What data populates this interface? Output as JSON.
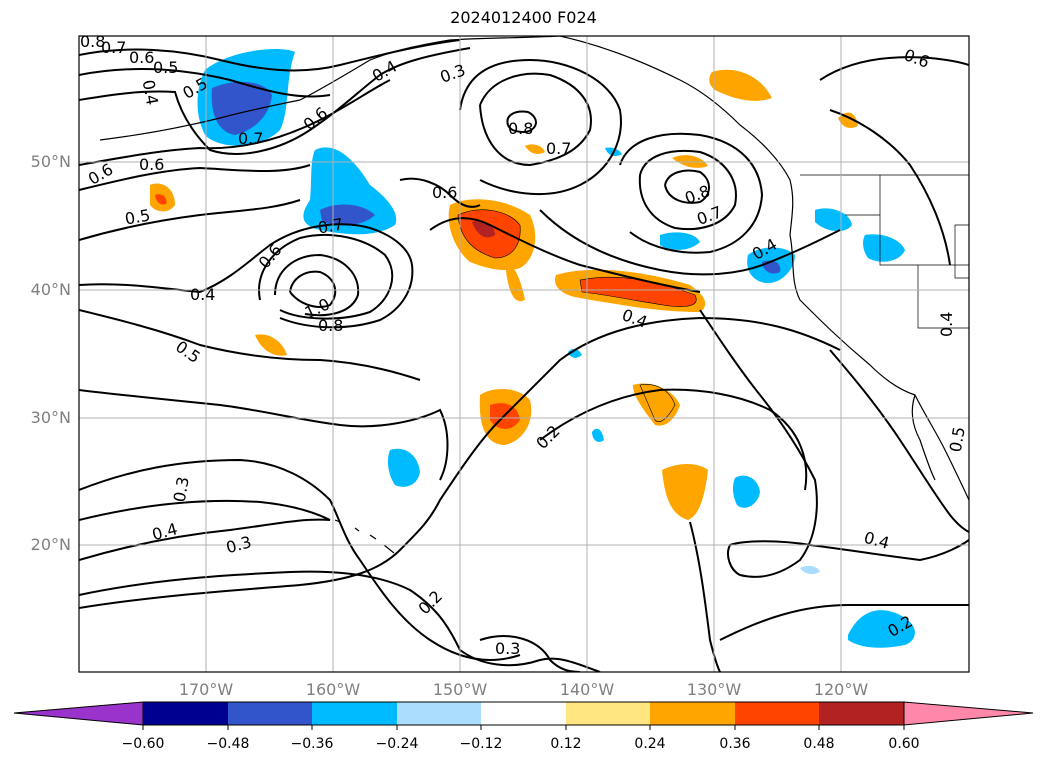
{
  "title": "2024012400 F024",
  "map": {
    "lat_labels": [
      "50°N",
      "40°N",
      "30°N",
      "20°N"
    ],
    "lon_labels": [
      "170°W",
      "160°W",
      "150°W",
      "140°W",
      "130°W",
      "120°W"
    ],
    "grid_color": "#b0b0b0",
    "contour_color": "#000000"
  },
  "contour_labels": [
    "0.8",
    "0.7",
    "0.6",
    "0.5",
    "0.4",
    "0.5",
    "0.6",
    "0.7",
    "0.6",
    "0.6",
    "0.4",
    "0.3",
    "0.8",
    "0.7",
    "0.6",
    "0.8",
    "0.7",
    "0.6",
    "0.5",
    "0.7",
    "0.6",
    "0.4",
    "1.0",
    "0.8",
    "0.4",
    "0.5",
    "0.4",
    "0.2",
    "0.3",
    "0.4",
    "0.3",
    "0.2",
    "0.3",
    "0.4",
    "0.2",
    "0.5",
    "0.4"
  ],
  "colorbar": {
    "ticks": [
      "−0.60",
      "−0.48",
      "−0.36",
      "−0.24",
      "−0.12",
      "0.12",
      "0.24",
      "0.36",
      "0.48",
      "0.60"
    ],
    "colors": [
      "#9933cc",
      "#000090",
      "#3355cc",
      "#00bbff",
      "#aaddff",
      "#ffffff",
      "#ffe680",
      "#ffa500",
      "#ff4400",
      "#b22222",
      "#ff88aa"
    ]
  }
}
